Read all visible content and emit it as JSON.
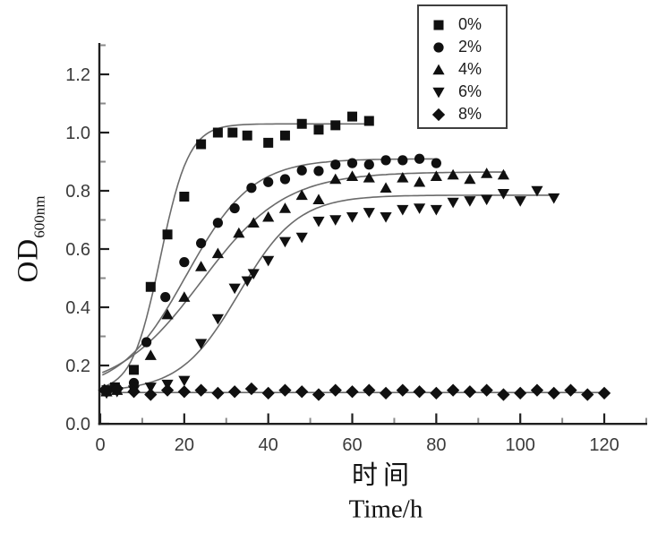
{
  "figure": {
    "ylabel": {
      "main": "OD",
      "sub": "600nm"
    },
    "xlabel_line1": "时间",
    "xlabel_line2": "Time/h"
  },
  "legend": {
    "items": [
      {
        "marker": "square",
        "label": "0%"
      },
      {
        "marker": "circle",
        "label": "2%"
      },
      {
        "marker": "triangle-up",
        "label": "4%"
      },
      {
        "marker": "triangle-down",
        "label": "6%"
      },
      {
        "marker": "diamond",
        "label": "8%"
      }
    ]
  },
  "chart_data": {
    "type": "scatter",
    "title": "",
    "xlabel": "时间 Time/h",
    "ylabel": "OD600nm",
    "xlim": [
      0,
      130
    ],
    "ylim": [
      0,
      1.3
    ],
    "x_major_ticks": [
      0,
      20,
      40,
      60,
      80,
      100,
      120
    ],
    "x_minor_ticks": [
      10,
      30,
      50,
      70,
      90,
      110,
      130
    ],
    "y_major_ticks": [
      0.0,
      0.2,
      0.4,
      0.6,
      0.8,
      1.0,
      1.2
    ],
    "y_minor_ticks": [
      0.1,
      0.3,
      0.5,
      0.7,
      0.9,
      1.1,
      1.3
    ],
    "grid": false,
    "legend_position": "upper-center-inside",
    "colors": {
      "marker": "#101010",
      "fit_line": "#6b6b6b",
      "axis": "#1f1f1f",
      "minor_tick": "#8a8a8a",
      "tick_label": "#3a3a3a"
    },
    "series": [
      {
        "name": "0%",
        "marker": "square",
        "fit": {
          "base": 0.11,
          "amp": 0.92,
          "mid": 14.3,
          "k": 3.4,
          "t_start": 0.5,
          "t_end": 64.5
        },
        "points": [
          [
            1.5,
            0.115
          ],
          [
            3.5,
            0.125
          ],
          [
            8,
            0.185
          ],
          [
            12,
            0.47
          ],
          [
            16,
            0.65
          ],
          [
            20,
            0.78
          ],
          [
            24,
            0.96
          ],
          [
            28,
            1.0
          ],
          [
            31.5,
            1.0
          ],
          [
            35,
            0.99
          ],
          [
            40,
            0.965
          ],
          [
            44,
            0.99
          ],
          [
            48,
            1.03
          ],
          [
            52,
            1.01
          ],
          [
            56,
            1.025
          ],
          [
            60,
            1.055
          ],
          [
            64,
            1.04
          ]
        ]
      },
      {
        "name": "2%",
        "marker": "circle",
        "fit": {
          "base": 0.11,
          "amp": 0.8,
          "mid": 20.5,
          "k": 7.8,
          "t_start": 0.5,
          "t_end": 80.5
        },
        "points": [
          [
            1.5,
            0.11
          ],
          [
            4,
            0.12
          ],
          [
            8,
            0.14
          ],
          [
            11,
            0.28
          ],
          [
            15.5,
            0.435
          ],
          [
            20,
            0.555
          ],
          [
            24,
            0.62
          ],
          [
            28,
            0.69
          ],
          [
            32,
            0.74
          ],
          [
            36,
            0.81
          ],
          [
            40,
            0.83
          ],
          [
            44,
            0.84
          ],
          [
            48,
            0.87
          ],
          [
            52,
            0.868
          ],
          [
            56,
            0.89
          ],
          [
            60,
            0.895
          ],
          [
            64,
            0.89
          ],
          [
            68,
            0.905
          ],
          [
            72,
            0.905
          ],
          [
            76,
            0.91
          ],
          [
            80,
            0.895
          ]
        ]
      },
      {
        "name": "4%",
        "marker": "triangle-up",
        "fit": {
          "base": 0.11,
          "amp": 0.755,
          "mid": 24,
          "k": 10,
          "t_start": 0.5,
          "t_end": 96.5
        },
        "points": [
          [
            1.5,
            0.11
          ],
          [
            4,
            0.115
          ],
          [
            8,
            0.125
          ],
          [
            12,
            0.235
          ],
          [
            16,
            0.375
          ],
          [
            20,
            0.435
          ],
          [
            24,
            0.54
          ],
          [
            28,
            0.585
          ],
          [
            33,
            0.655
          ],
          [
            36.5,
            0.69
          ],
          [
            40,
            0.71
          ],
          [
            44,
            0.74
          ],
          [
            48,
            0.785
          ],
          [
            52,
            0.77
          ],
          [
            56,
            0.84
          ],
          [
            60,
            0.85
          ],
          [
            64,
            0.845
          ],
          [
            68,
            0.81
          ],
          [
            72,
            0.845
          ],
          [
            76,
            0.83
          ],
          [
            80,
            0.85
          ],
          [
            84,
            0.855
          ],
          [
            88,
            0.84
          ],
          [
            92,
            0.86
          ],
          [
            96,
            0.855
          ]
        ]
      },
      {
        "name": "6%",
        "marker": "triangle-down",
        "fit": {
          "base": 0.11,
          "amp": 0.675,
          "mid": 33,
          "k": 7,
          "t_start": 0.5,
          "t_end": 108.5
        },
        "points": [
          [
            1.5,
            0.105
          ],
          [
            4,
            0.11
          ],
          [
            8,
            0.115
          ],
          [
            12,
            0.125
          ],
          [
            16,
            0.135
          ],
          [
            20,
            0.148
          ],
          [
            24,
            0.275
          ],
          [
            28,
            0.36
          ],
          [
            32,
            0.465
          ],
          [
            35,
            0.49
          ],
          [
            36.5,
            0.515
          ],
          [
            40,
            0.56
          ],
          [
            44,
            0.625
          ],
          [
            48,
            0.64
          ],
          [
            52,
            0.695
          ],
          [
            56,
            0.7
          ],
          [
            60,
            0.71
          ],
          [
            64,
            0.725
          ],
          [
            68,
            0.71
          ],
          [
            72,
            0.735
          ],
          [
            76,
            0.74
          ],
          [
            80,
            0.735
          ],
          [
            84,
            0.76
          ],
          [
            88,
            0.765
          ],
          [
            92,
            0.77
          ],
          [
            96,
            0.79
          ],
          [
            100,
            0.765
          ],
          [
            104,
            0.8
          ],
          [
            108,
            0.775
          ]
        ]
      },
      {
        "name": "8%",
        "marker": "diamond",
        "fit": {
          "flat": 0.107,
          "t_start": 0.5,
          "t_end": 121
        },
        "points": [
          [
            1,
            0.115
          ],
          [
            4,
            0.12
          ],
          [
            8,
            0.11
          ],
          [
            12,
            0.1
          ],
          [
            16,
            0.115
          ],
          [
            20,
            0.11
          ],
          [
            24,
            0.115
          ],
          [
            28,
            0.105
          ],
          [
            32,
            0.11
          ],
          [
            36,
            0.12
          ],
          [
            40,
            0.105
          ],
          [
            44,
            0.115
          ],
          [
            48,
            0.11
          ],
          [
            52,
            0.1
          ],
          [
            56,
            0.115
          ],
          [
            60,
            0.11
          ],
          [
            64,
            0.115
          ],
          [
            68,
            0.105
          ],
          [
            72,
            0.115
          ],
          [
            76,
            0.11
          ],
          [
            80,
            0.105
          ],
          [
            84,
            0.115
          ],
          [
            88,
            0.11
          ],
          [
            92,
            0.115
          ],
          [
            96,
            0.1
          ],
          [
            100,
            0.105
          ],
          [
            104,
            0.115
          ],
          [
            108,
            0.105
          ],
          [
            112,
            0.115
          ],
          [
            116,
            0.1
          ],
          [
            120,
            0.105
          ]
        ]
      }
    ]
  }
}
